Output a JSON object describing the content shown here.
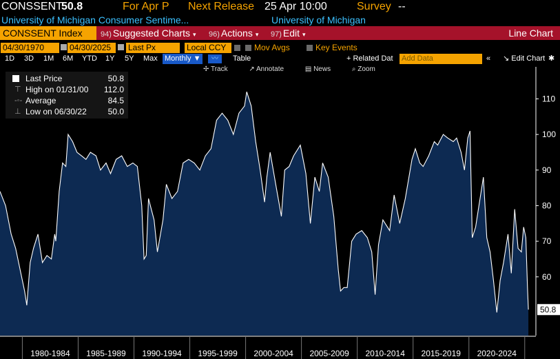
{
  "header": {
    "ticker": "CONSSENT",
    "last": "50.8",
    "for_label": "For Apr P",
    "next_release_label": "Next Release",
    "next_release_value": "25 Apr 10:00",
    "survey_label": "Survey",
    "survey_value": "--",
    "description": "University of Michigan Consumer Sentime...",
    "source": "University of Michigan"
  },
  "menubar": {
    "security": "CONSSENT Index",
    "items": [
      {
        "num": "94)",
        "label": "Suggested Charts"
      },
      {
        "num": "96)",
        "label": "Actions"
      },
      {
        "num": "97)",
        "label": "Edit"
      }
    ],
    "chart_type": "Line Chart"
  },
  "options": {
    "start_date": "04/30/1970",
    "end_date": "04/30/2025",
    "field": "Last Px",
    "currency": "Local CCY",
    "mov_avgs": "Mov Avgs",
    "key_events": "Key Events"
  },
  "periods": {
    "items": [
      "1D",
      "3D",
      "1M",
      "6M",
      "YTD",
      "1Y",
      "5Y",
      "Max"
    ],
    "frequency": "Monthly",
    "table": "Table",
    "related": "Related Dat",
    "add_data_placeholder": "Add Data",
    "edit_chart": "Edit Chart"
  },
  "toolbar": {
    "track": "Track",
    "annotate": "Annotate",
    "news": "News",
    "zoom": "Zoom"
  },
  "legend": {
    "last_label": "Last Price",
    "last_value": "50.8",
    "high_label": "High on 01/31/00",
    "high_value": "112.0",
    "avg_label": "Average",
    "avg_value": "84.5",
    "low_label": "Low on 06/30/22",
    "low_value": "50.0"
  },
  "colors": {
    "accent": "#f5a300",
    "menubar": "#a5122a",
    "area": "#0d2a52",
    "line": "#ffffff",
    "header_blue": "#3cc1ff"
  },
  "chart_data": {
    "type": "area",
    "series": [
      {
        "name": "CONSSENT Index",
        "values_note": "monthly",
        "points": [
          [
            1978.0,
            84
          ],
          [
            1978.5,
            80
          ],
          [
            1979.0,
            72
          ],
          [
            1979.4,
            68
          ],
          [
            1979.8,
            62
          ],
          [
            1980.2,
            56
          ],
          [
            1980.4,
            52
          ],
          [
            1980.7,
            64
          ],
          [
            1981.0,
            68
          ],
          [
            1981.4,
            72
          ],
          [
            1981.8,
            64
          ],
          [
            1982.2,
            66
          ],
          [
            1982.6,
            65
          ],
          [
            1982.9,
            72
          ],
          [
            1983.0,
            70
          ],
          [
            1983.3,
            84
          ],
          [
            1983.6,
            92
          ],
          [
            1983.9,
            91
          ],
          [
            1984.1,
            100
          ],
          [
            1984.5,
            98
          ],
          [
            1984.9,
            95
          ],
          [
            1985.3,
            94
          ],
          [
            1985.7,
            93
          ],
          [
            1986.1,
            95
          ],
          [
            1986.6,
            94
          ],
          [
            1987.0,
            90
          ],
          [
            1987.5,
            92
          ],
          [
            1987.9,
            89
          ],
          [
            1988.4,
            93
          ],
          [
            1988.9,
            94
          ],
          [
            1989.4,
            91
          ],
          [
            1989.9,
            92
          ],
          [
            1990.3,
            91
          ],
          [
            1990.7,
            80
          ],
          [
            1990.9,
            65
          ],
          [
            1991.1,
            66
          ],
          [
            1991.3,
            82
          ],
          [
            1991.8,
            76
          ],
          [
            1992.1,
            67
          ],
          [
            1992.6,
            76
          ],
          [
            1992.9,
            86
          ],
          [
            1993.4,
            82
          ],
          [
            1993.9,
            84
          ],
          [
            1994.4,
            92
          ],
          [
            1994.9,
            93
          ],
          [
            1995.4,
            92
          ],
          [
            1995.9,
            90
          ],
          [
            1996.4,
            94
          ],
          [
            1996.9,
            96
          ],
          [
            1997.4,
            104
          ],
          [
            1997.9,
            106
          ],
          [
            1998.4,
            104
          ],
          [
            1998.9,
            100
          ],
          [
            1999.4,
            106
          ],
          [
            1999.9,
            108
          ],
          [
            2000.1,
            112
          ],
          [
            2000.5,
            108
          ],
          [
            2000.9,
            98
          ],
          [
            2001.3,
            90
          ],
          [
            2001.7,
            81
          ],
          [
            2001.9,
            88
          ],
          [
            2002.2,
            95
          ],
          [
            2002.7,
            86
          ],
          [
            2003.2,
            77
          ],
          [
            2003.5,
            90
          ],
          [
            2003.9,
            91
          ],
          [
            2004.3,
            94
          ],
          [
            2004.9,
            97
          ],
          [
            2005.4,
            89
          ],
          [
            2005.8,
            75
          ],
          [
            2006.2,
            88
          ],
          [
            2006.6,
            84
          ],
          [
            2006.9,
            92
          ],
          [
            2007.4,
            88
          ],
          [
            2007.9,
            77
          ],
          [
            2008.3,
            62
          ],
          [
            2008.5,
            56
          ],
          [
            2008.8,
            57
          ],
          [
            2009.1,
            57
          ],
          [
            2009.5,
            70
          ],
          [
            2009.9,
            72
          ],
          [
            2010.4,
            73
          ],
          [
            2010.9,
            71
          ],
          [
            2011.3,
            67
          ],
          [
            2011.6,
            55
          ],
          [
            2011.9,
            69
          ],
          [
            2012.3,
            76
          ],
          [
            2012.9,
            73
          ],
          [
            2013.3,
            83
          ],
          [
            2013.8,
            75
          ],
          [
            2014.3,
            82
          ],
          [
            2014.9,
            93
          ],
          [
            2015.2,
            96
          ],
          [
            2015.6,
            92
          ],
          [
            2015.9,
            91
          ],
          [
            2016.4,
            94
          ],
          [
            2016.9,
            98
          ],
          [
            2017.2,
            97
          ],
          [
            2017.7,
            100
          ],
          [
            2018.1,
            99
          ],
          [
            2018.6,
            98
          ],
          [
            2018.9,
            99
          ],
          [
            2019.3,
            95
          ],
          [
            2019.6,
            90
          ],
          [
            2019.9,
            99
          ],
          [
            2020.1,
            101
          ],
          [
            2020.3,
            71
          ],
          [
            2020.6,
            74
          ],
          [
            2020.9,
            80
          ],
          [
            2021.3,
            88
          ],
          [
            2021.6,
            71
          ],
          [
            2021.9,
            67
          ],
          [
            2022.2,
            59
          ],
          [
            2022.5,
            50
          ],
          [
            2022.8,
            59
          ],
          [
            2023.1,
            64
          ],
          [
            2023.5,
            72
          ],
          [
            2023.8,
            61
          ],
          [
            2024.1,
            79
          ],
          [
            2024.4,
            68
          ],
          [
            2024.7,
            67
          ],
          [
            2024.9,
            74
          ],
          [
            2025.1,
            71
          ],
          [
            2025.25,
            57
          ],
          [
            2025.33,
            50.8
          ]
        ]
      }
    ],
    "ylim": [
      43.5,
      119
    ],
    "y_ticks": [
      60,
      70,
      80,
      90,
      100,
      110
    ],
    "x_categories": [
      "1980-1984",
      "1985-1989",
      "1990-1994",
      "1995-1999",
      "2000-2004",
      "2005-2009",
      "2010-2014",
      "2015-2019",
      "2020-2024"
    ],
    "last_value_label": "50.8",
    "grid": false,
    "legend_position": "top-left"
  }
}
